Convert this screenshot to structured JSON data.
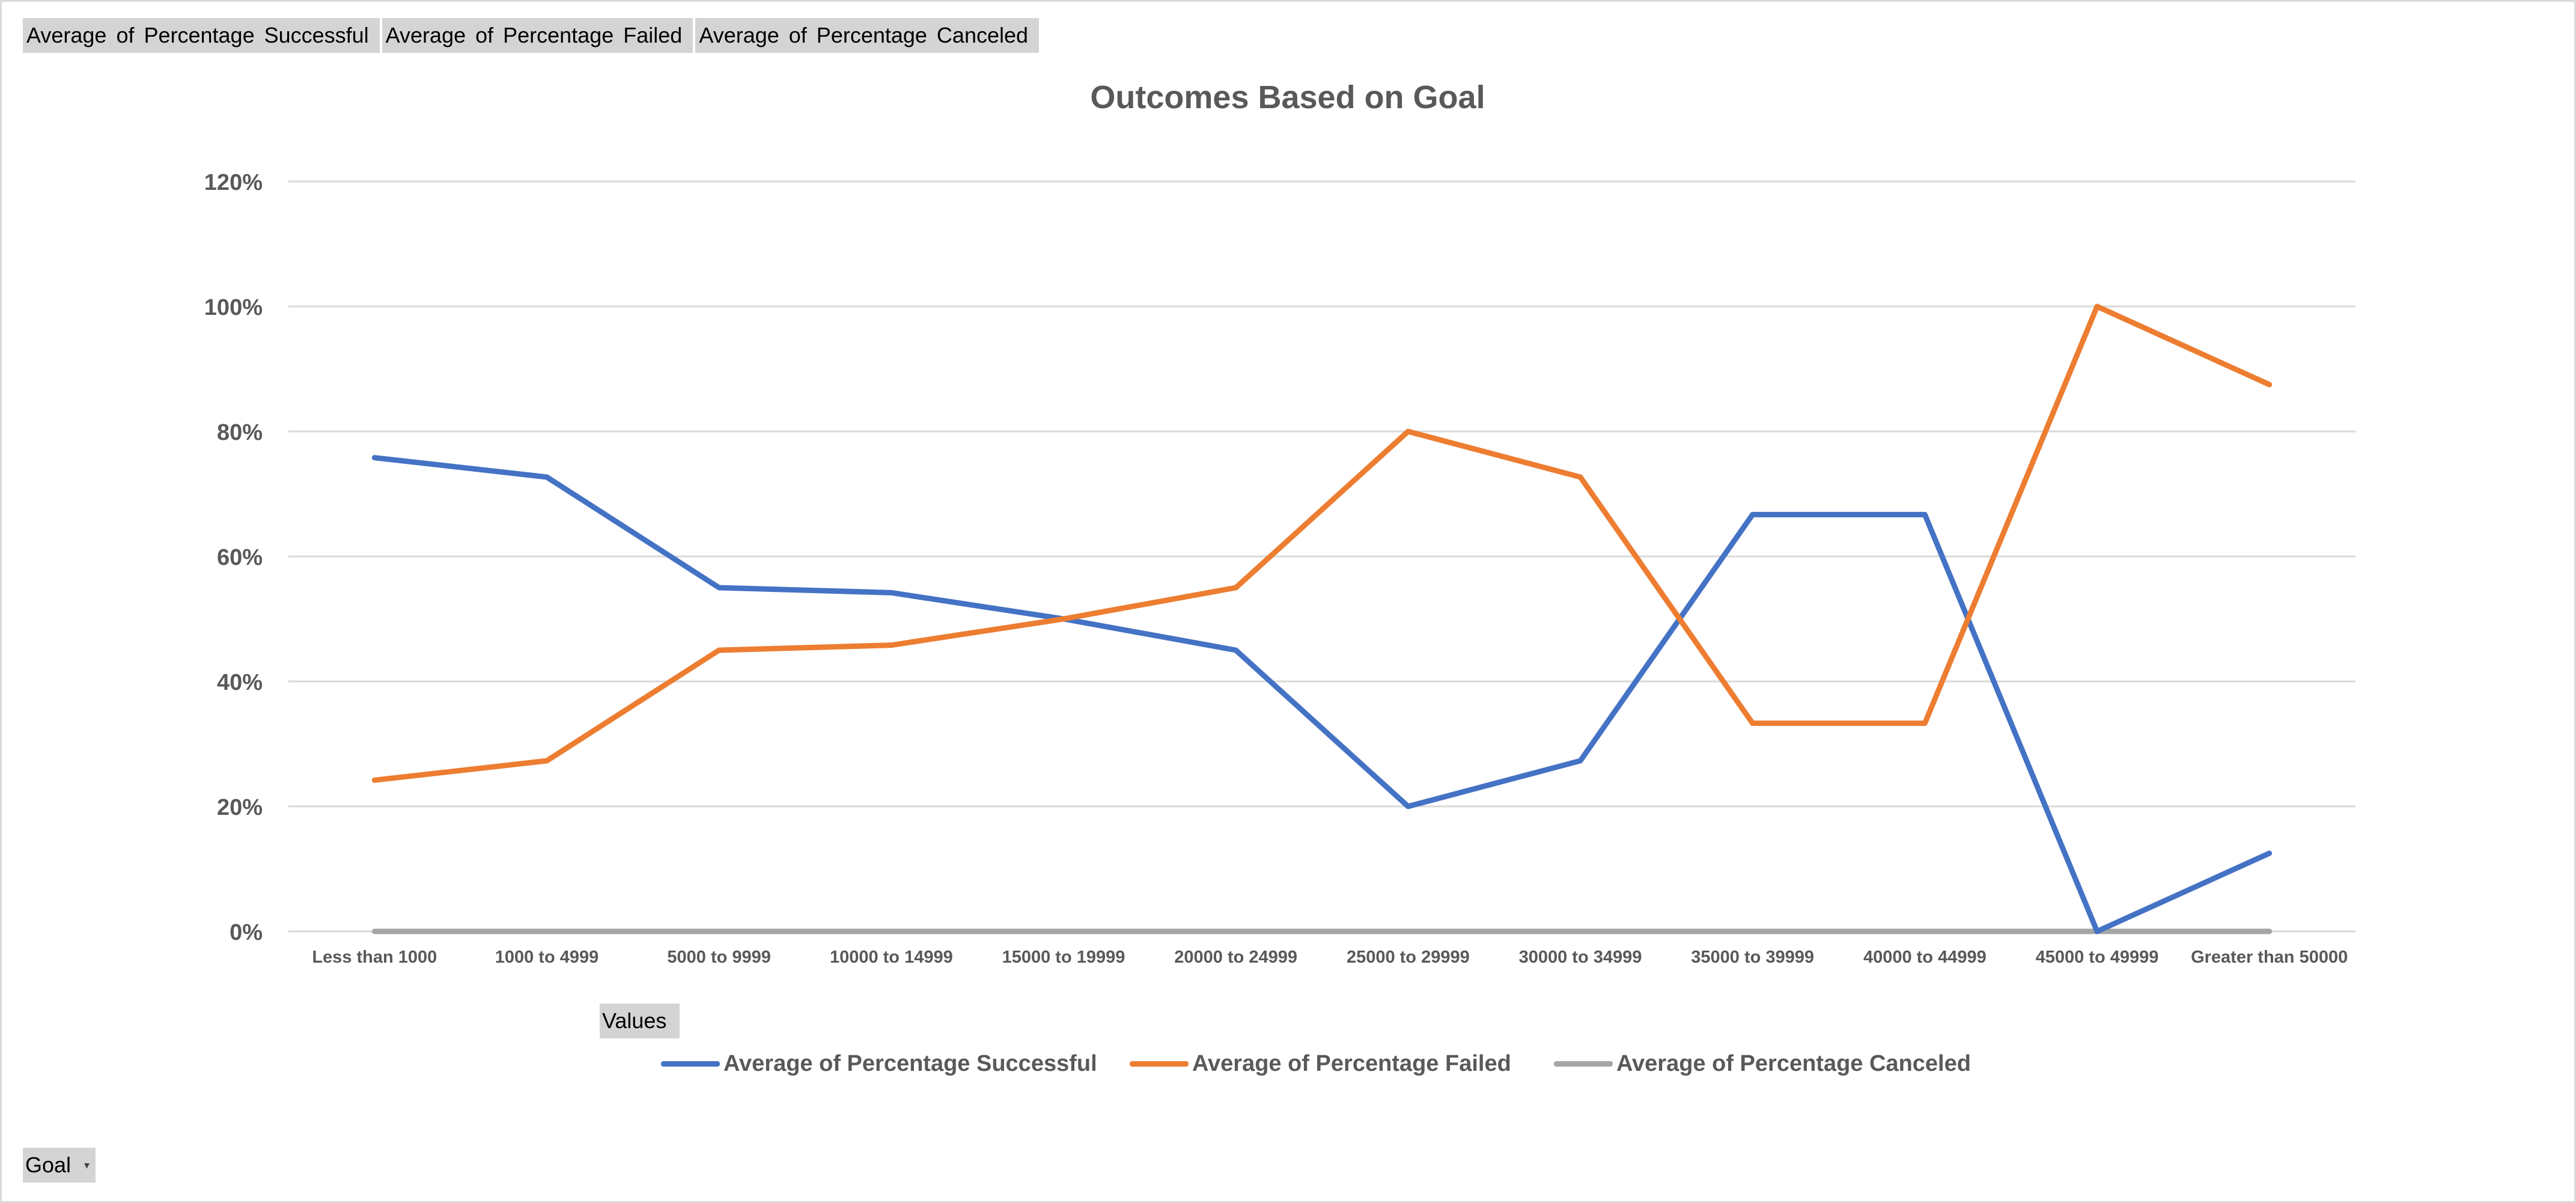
{
  "pivot_buttons": {
    "values_fields": [
      "Average of Percentage Successful",
      "Average of Percentage Failed",
      "Average of Percentage Canceled"
    ],
    "values_label": "Values",
    "axis_field_label": "Goal"
  },
  "chart_data": {
    "type": "line",
    "title": "Outcomes Based on Goal",
    "xlabel": "",
    "ylabel": "",
    "categories": [
      "Less than 1000",
      "1000 to 4999",
      "5000 to 9999",
      "10000 to 14999",
      "15000 to 19999",
      "20000 to 24999",
      "25000 to 29999",
      "30000 to 34999",
      "35000 to 39999",
      "40000 to 44999",
      "45000 to 49999",
      "Greater than 50000"
    ],
    "y_ticks": [
      "0%",
      "20%",
      "40%",
      "60%",
      "80%",
      "100%",
      "120%"
    ],
    "ylim": [
      0,
      1.2
    ],
    "grid": "horizontal",
    "legend_position": "bottom",
    "series": [
      {
        "name": "Average of Percentage Successful",
        "color": "#4472C4",
        "values": [
          0.758,
          0.727,
          0.55,
          0.542,
          0.5,
          0.45,
          0.2,
          0.273,
          0.667,
          0.667,
          0.0,
          0.125
        ]
      },
      {
        "name": "Average of Percentage Failed",
        "color": "#ED7D31",
        "values": [
          0.242,
          0.273,
          0.45,
          0.458,
          0.5,
          0.55,
          0.8,
          0.727,
          0.333,
          0.333,
          1.0,
          0.875
        ]
      },
      {
        "name": "Average of Percentage Canceled",
        "color": "#A5A5A5",
        "values": [
          0,
          0,
          0,
          0,
          0,
          0,
          0,
          0,
          0,
          0,
          0,
          0
        ]
      }
    ]
  }
}
